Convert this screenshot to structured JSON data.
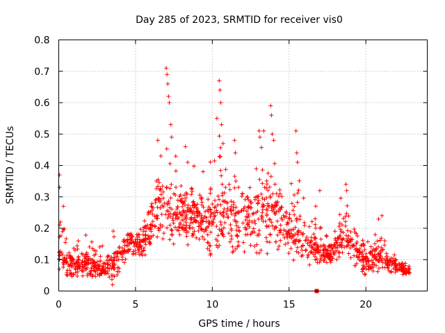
{
  "chart_data": {
    "type": "scatter",
    "title": "Day 285 of 2023, SRMTID for receiver vis0",
    "xlabel": "GPS time / hours",
    "ylabel": "SRMTID / TECUs",
    "xlim": [
      0,
      24
    ],
    "ylim": [
      0,
      0.8
    ],
    "grid": true,
    "x_ticks": [
      0,
      5,
      10,
      15,
      20
    ],
    "x_tick_labels": [
      "0",
      "5",
      "10",
      "15",
      "20"
    ],
    "y_ticks": [
      0,
      0.1,
      0.2,
      0.3,
      0.4,
      0.5,
      0.6,
      0.7,
      0.8
    ],
    "y_tick_labels": [
      "0",
      "0.1",
      "0.2",
      "0.3",
      "0.4",
      "0.5",
      "0.6",
      "0.7",
      "0.8"
    ],
    "series": [
      {
        "name": "vis0",
        "marker": "plus",
        "color": "#ff0000",
        "note": "envelope of the dense cloud of points: [time_hours, low, typical, high] in TECU",
        "envelope": [
          [
            0.0,
            0.05,
            0.12,
            0.38
          ],
          [
            0.5,
            0.04,
            0.09,
            0.25
          ],
          [
            1.0,
            0.04,
            0.08,
            0.22
          ],
          [
            1.5,
            0.04,
            0.08,
            0.16
          ],
          [
            2.0,
            0.04,
            0.08,
            0.2
          ],
          [
            2.5,
            0.04,
            0.07,
            0.16
          ],
          [
            3.0,
            0.04,
            0.06,
            0.14
          ],
          [
            3.5,
            0.02,
            0.07,
            0.2
          ],
          [
            4.0,
            0.05,
            0.1,
            0.2
          ],
          [
            4.5,
            0.1,
            0.15,
            0.22
          ],
          [
            5.0,
            0.09,
            0.14,
            0.21
          ],
          [
            5.5,
            0.09,
            0.15,
            0.27
          ],
          [
            6.0,
            0.14,
            0.2,
            0.32
          ],
          [
            6.5,
            0.14,
            0.24,
            0.48
          ],
          [
            7.0,
            0.14,
            0.26,
            0.71
          ],
          [
            7.5,
            0.13,
            0.22,
            0.45
          ],
          [
            8.0,
            0.14,
            0.23,
            0.38
          ],
          [
            8.5,
            0.13,
            0.22,
            0.42
          ],
          [
            9.0,
            0.12,
            0.23,
            0.4
          ],
          [
            9.5,
            0.1,
            0.2,
            0.35
          ],
          [
            10.0,
            0.09,
            0.22,
            0.44
          ],
          [
            10.5,
            0.1,
            0.24,
            0.67
          ],
          [
            11.0,
            0.11,
            0.23,
            0.45
          ],
          [
            11.5,
            0.11,
            0.23,
            0.48
          ],
          [
            12.0,
            0.09,
            0.22,
            0.42
          ],
          [
            12.5,
            0.09,
            0.21,
            0.35
          ],
          [
            13.0,
            0.09,
            0.23,
            0.51
          ],
          [
            13.5,
            0.1,
            0.24,
            0.52
          ],
          [
            14.0,
            0.13,
            0.25,
            0.6
          ],
          [
            14.5,
            0.1,
            0.22,
            0.35
          ],
          [
            15.0,
            0.08,
            0.17,
            0.3
          ],
          [
            15.5,
            0.08,
            0.17,
            0.51
          ],
          [
            16.0,
            0.08,
            0.14,
            0.3
          ],
          [
            16.5,
            0.08,
            0.13,
            0.23
          ],
          [
            17.0,
            0.08,
            0.13,
            0.32
          ],
          [
            17.5,
            0.08,
            0.12,
            0.22
          ],
          [
            18.0,
            0.08,
            0.13,
            0.2
          ],
          [
            18.5,
            0.09,
            0.15,
            0.34
          ],
          [
            19.0,
            0.09,
            0.15,
            0.26
          ],
          [
            19.5,
            0.06,
            0.12,
            0.22
          ],
          [
            20.0,
            0.03,
            0.09,
            0.18
          ],
          [
            20.5,
            0.05,
            0.1,
            0.2
          ],
          [
            21.0,
            0.05,
            0.1,
            0.25
          ],
          [
            21.5,
            0.05,
            0.08,
            0.13
          ],
          [
            22.0,
            0.05,
            0.08,
            0.12
          ],
          [
            22.5,
            0.05,
            0.07,
            0.1
          ],
          [
            22.85,
            0.05,
            0.06,
            0.08
          ]
        ],
        "spikes": [
          [
            0.05,
            0.37
          ],
          [
            0.05,
            0.33
          ],
          [
            0.3,
            0.27
          ],
          [
            6.45,
            0.48
          ],
          [
            6.65,
            0.43
          ],
          [
            7.0,
            0.71
          ],
          [
            7.05,
            0.69
          ],
          [
            7.1,
            0.66
          ],
          [
            7.15,
            0.62
          ],
          [
            7.2,
            0.6
          ],
          [
            7.3,
            0.53
          ],
          [
            7.35,
            0.49
          ],
          [
            8.25,
            0.46
          ],
          [
            8.4,
            0.41
          ],
          [
            9.4,
            0.38
          ],
          [
            10.3,
            0.55
          ],
          [
            10.45,
            0.67
          ],
          [
            10.5,
            0.64
          ],
          [
            10.55,
            0.6
          ],
          [
            10.6,
            0.53
          ],
          [
            10.7,
            0.47
          ],
          [
            11.45,
            0.48
          ],
          [
            11.5,
            0.44
          ],
          [
            13.05,
            0.51
          ],
          [
            13.1,
            0.49
          ],
          [
            13.35,
            0.51
          ],
          [
            13.8,
            0.59
          ],
          [
            13.85,
            0.56
          ],
          [
            13.9,
            0.5
          ],
          [
            14.0,
            0.48
          ],
          [
            15.45,
            0.51
          ],
          [
            15.5,
            0.44
          ],
          [
            15.55,
            0.41
          ],
          [
            17.0,
            0.32
          ],
          [
            18.7,
            0.34
          ],
          [
            18.75,
            0.32
          ],
          [
            21.05,
            0.24
          ],
          [
            3.5,
            0.02
          ]
        ],
        "extra_marks": [
          [
            16.8,
            0.0
          ]
        ]
      }
    ]
  }
}
